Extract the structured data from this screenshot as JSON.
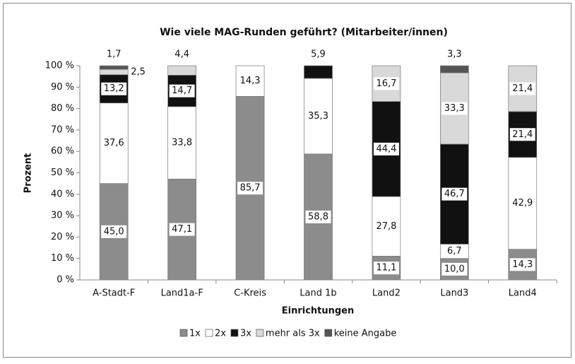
{
  "chart_data": {
    "type": "stacked_bar",
    "title": "Wie viele MAG-Runden geführt? (Mitarbeiter/innen)",
    "x_label": "Einrichtungen",
    "y_label": "Prozent",
    "categories": [
      "A-Stadt-F",
      "Land1a-F",
      "C-Kreis",
      "Land 1b",
      "Land2",
      "Land3",
      "Land4"
    ],
    "series": [
      {
        "name": "1x",
        "color": "#8c8c8c",
        "values": [
          45.0,
          47.1,
          85.7,
          58.8,
          11.1,
          10.0,
          14.3
        ],
        "value_labels": [
          "45,0",
          "47,1",
          "85,7",
          "58,8",
          "11,1",
          "10,0",
          "14,3"
        ]
      },
      {
        "name": "2x",
        "color": "#ffffff",
        "values": [
          37.6,
          33.8,
          14.3,
          35.3,
          27.8,
          6.7,
          42.9
        ],
        "value_labels": [
          "37,6",
          "33,8",
          "14,3",
          "35,3",
          "27,8",
          "6,7",
          "42,9"
        ]
      },
      {
        "name": "3x",
        "color": "#111111",
        "values": [
          13.2,
          14.7,
          null,
          5.9,
          44.4,
          46.7,
          21.4
        ],
        "value_labels": [
          "13,2",
          "14,7",
          null,
          "5,9",
          "44,4",
          "46,7",
          "21,4"
        ]
      },
      {
        "name": "mehr als 3x",
        "color": "#d9d9d9",
        "values": [
          2.5,
          4.4,
          null,
          null,
          16.7,
          33.3,
          21.4
        ],
        "value_labels": [
          "2,5",
          "4,4",
          null,
          null,
          "16,7",
          "33,3",
          "21,4"
        ]
      },
      {
        "name": "keine Angabe",
        "color": "#555555",
        "values": [
          1.7,
          null,
          null,
          null,
          null,
          3.3,
          null
        ],
        "value_labels": [
          "1,7",
          null,
          null,
          null,
          null,
          "3,3",
          null
        ]
      }
    ],
    "ylim": [
      0,
      100
    ],
    "yticks": [
      {
        "value": 0,
        "label": "0 %"
      },
      {
        "value": 10,
        "label": "10 %"
      },
      {
        "value": 20,
        "label": "20 %"
      },
      {
        "value": 30,
        "label": "30 %"
      },
      {
        "value": 40,
        "label": "40 %"
      },
      {
        "value": 50,
        "label": "50 %"
      },
      {
        "value": 60,
        "label": "60 %"
      },
      {
        "value": 70,
        "label": "70 %"
      },
      {
        "value": 80,
        "label": "80 %"
      },
      {
        "value": 90,
        "label": "90 %"
      },
      {
        "value": 100,
        "label": "100 %"
      }
    ],
    "grid": false,
    "legend": "bottom"
  }
}
